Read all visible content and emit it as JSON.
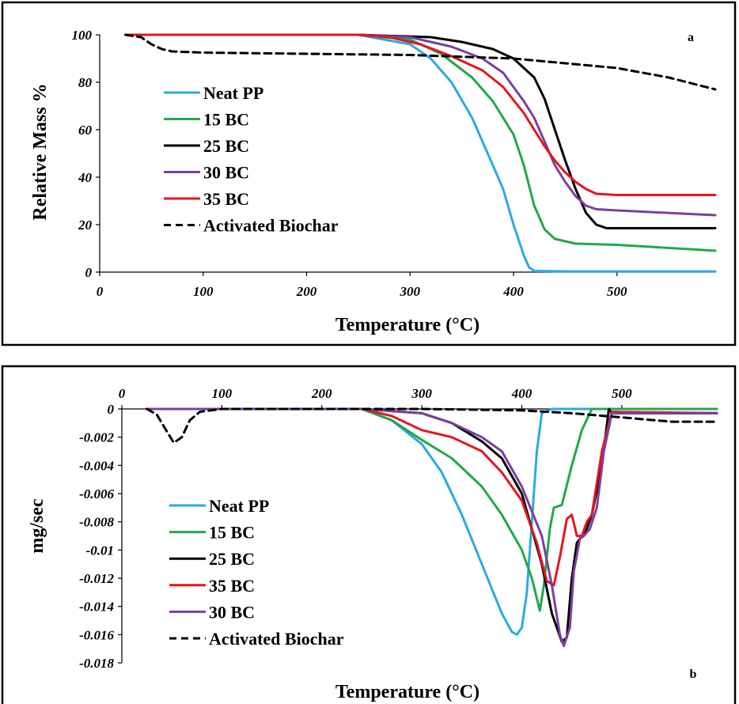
{
  "chart_data": [
    {
      "panel_letter": "a",
      "type": "line",
      "xlabel": "Temperature (°C)",
      "ylabel": "Relative Mass %",
      "xlim": [
        0,
        595
      ],
      "ylim": [
        0,
        100
      ],
      "x_ticks": [
        0,
        100,
        200,
        300,
        400,
        500
      ],
      "y_ticks": [
        0,
        20,
        40,
        60,
        80,
        100
      ],
      "legend_position": "left",
      "series": [
        {
          "name": "Neat PP",
          "color": "#2AAAE2",
          "dash": "solid",
          "x": [
            25,
            100,
            250,
            300,
            320,
            340,
            360,
            380,
            390,
            400,
            410,
            415,
            420,
            450,
            595
          ],
          "y": [
            100,
            100,
            100,
            96,
            90,
            80,
            65,
            45,
            35,
            20,
            7,
            2,
            0.5,
            0.3,
            0.3
          ]
        },
        {
          "name": "15 BC",
          "color": "#22A84A",
          "dash": "solid",
          "x": [
            25,
            100,
            250,
            300,
            330,
            360,
            380,
            400,
            410,
            420,
            430,
            440,
            460,
            500,
            595
          ],
          "y": [
            100,
            100,
            100,
            98,
            92,
            82,
            72,
            58,
            45,
            28,
            18,
            14,
            12,
            11.5,
            9
          ]
        },
        {
          "name": "25 BC",
          "color": "#000000",
          "dash": "solid",
          "x": [
            25,
            100,
            250,
            320,
            350,
            380,
            400,
            420,
            430,
            440,
            450,
            460,
            470,
            480,
            490,
            595
          ],
          "y": [
            100,
            100,
            100,
            99,
            97,
            94,
            90,
            82,
            73,
            60,
            47,
            35,
            25,
            20,
            18.5,
            18.5
          ]
        },
        {
          "name": "30 BC",
          "color": "#7B3FA0",
          "dash": "solid",
          "x": [
            25,
            100,
            250,
            300,
            340,
            370,
            390,
            410,
            420,
            430,
            440,
            450,
            460,
            470,
            480,
            500,
            595
          ],
          "y": [
            100,
            100,
            100,
            99,
            95,
            90,
            84,
            72,
            65,
            55,
            45,
            38,
            32,
            28,
            26.5,
            26,
            24
          ]
        },
        {
          "name": "35 BC",
          "color": "#E3161E",
          "dash": "solid",
          "x": [
            25,
            100,
            250,
            280,
            310,
            340,
            370,
            390,
            410,
            420,
            430,
            440,
            450,
            460,
            470,
            480,
            500,
            595
          ],
          "y": [
            100,
            100,
            100,
            99,
            96,
            91,
            85,
            78,
            67,
            60,
            53,
            47,
            42,
            38,
            35,
            33,
            32.5,
            32.5
          ]
        },
        {
          "name": "Activated Biochar",
          "color": "#000000",
          "dash": "dashed",
          "x": [
            25,
            40,
            50,
            60,
            70,
            100,
            200,
            300,
            400,
            450,
            500,
            550,
            595
          ],
          "y": [
            100,
            99,
            96,
            94,
            93,
            92.5,
            92,
            91.5,
            90,
            88,
            86,
            82,
            77
          ]
        }
      ]
    },
    {
      "panel_letter": "b",
      "type": "line",
      "xlabel": "Temperature (°C)",
      "ylabel": "mg/sec",
      "xlim": [
        0,
        595
      ],
      "ylim": [
        -0.018,
        0
      ],
      "x_ticks": [
        0,
        100,
        200,
        300,
        400,
        500
      ],
      "y_ticks": [
        0,
        -0.002,
        -0.004,
        -0.006,
        -0.008,
        -0.01,
        -0.012,
        -0.014,
        -0.016,
        -0.018
      ],
      "y_tick_labels": [
        "0",
        "-0.002",
        "-0.004",
        "-0.006",
        "-0.008",
        "-0.01",
        "-0.012",
        "-0.014",
        "-0.016",
        "-0.018"
      ],
      "legend_position": "left",
      "series": [
        {
          "name": "Neat PP",
          "color": "#2AAAE2",
          "dash": "solid",
          "x": [
            25,
            100,
            240,
            270,
            300,
            320,
            340,
            360,
            380,
            390,
            395,
            400,
            405,
            410,
            415,
            420,
            430,
            595
          ],
          "y": [
            0,
            0,
            0,
            -0.0008,
            -0.0025,
            -0.0045,
            -0.0075,
            -0.011,
            -0.0145,
            -0.0158,
            -0.016,
            -0.0155,
            -0.013,
            -0.008,
            -0.003,
            -0.0003,
            0,
            0
          ]
        },
        {
          "name": "15 BC",
          "color": "#22A84A",
          "dash": "solid",
          "x": [
            25,
            100,
            240,
            270,
            300,
            330,
            360,
            380,
            400,
            410,
            418,
            422,
            428,
            432,
            440,
            450,
            460,
            470,
            595
          ],
          "y": [
            0,
            0,
            0,
            -0.0008,
            -0.0022,
            -0.0035,
            -0.0055,
            -0.0075,
            -0.01,
            -0.012,
            -0.0143,
            -0.0125,
            -0.0085,
            -0.007,
            -0.0068,
            -0.004,
            -0.0015,
            0,
            0
          ]
        },
        {
          "name": "25 BC",
          "color": "#000000",
          "dash": "solid",
          "x": [
            25,
            100,
            240,
            300,
            330,
            360,
            380,
            400,
            410,
            420,
            430,
            440,
            445,
            450,
            455,
            460,
            465,
            470,
            480,
            487,
            490,
            500,
            595
          ],
          "y": [
            0,
            0,
            0,
            -0.0003,
            -0.001,
            -0.0023,
            -0.0035,
            -0.006,
            -0.0085,
            -0.011,
            -0.0145,
            -0.0165,
            -0.0162,
            -0.012,
            -0.0095,
            -0.009,
            -0.0085,
            -0.0075,
            -0.004,
            0,
            -0.0003,
            -0.0003,
            -0.0003
          ]
        },
        {
          "name": "35 BC",
          "color": "#E3161E",
          "dash": "solid",
          "x": [
            25,
            100,
            240,
            270,
            300,
            330,
            360,
            380,
            400,
            415,
            425,
            432,
            438,
            445,
            450,
            455,
            460,
            465,
            470,
            480,
            490,
            595
          ],
          "y": [
            0,
            0,
            0,
            -0.0005,
            -0.0015,
            -0.002,
            -0.003,
            -0.0045,
            -0.0065,
            -0.0095,
            -0.0122,
            -0.0125,
            -0.0105,
            -0.0078,
            -0.0075,
            -0.009,
            -0.009,
            -0.008,
            -0.0075,
            -0.003,
            -0.0002,
            -0.0003
          ]
        },
        {
          "name": "30 BC",
          "color": "#7B3FA0",
          "dash": "solid",
          "x": [
            25,
            100,
            240,
            300,
            330,
            360,
            380,
            400,
            420,
            430,
            438,
            442,
            448,
            452,
            458,
            462,
            468,
            475,
            482,
            490,
            595
          ],
          "y": [
            0,
            0,
            0,
            -0.0003,
            -0.001,
            -0.002,
            -0.003,
            -0.0055,
            -0.009,
            -0.0125,
            -0.016,
            -0.0168,
            -0.0155,
            -0.0115,
            -0.0092,
            -0.009,
            -0.0085,
            -0.007,
            -0.003,
            -0.0003,
            -0.0003
          ]
        },
        {
          "name": "Activated Biochar",
          "color": "#000000",
          "dash": "dashed",
          "x": [
            25,
            35,
            45,
            52,
            60,
            68,
            78,
            100,
            300,
            400,
            450,
            500,
            550,
            595
          ],
          "y": [
            0,
            -0.0004,
            -0.0016,
            -0.0024,
            -0.002,
            -0.0008,
            -0.0002,
            0,
            0,
            -0.0001,
            -0.0003,
            -0.0006,
            -0.0009,
            -0.0009
          ]
        }
      ]
    }
  ]
}
